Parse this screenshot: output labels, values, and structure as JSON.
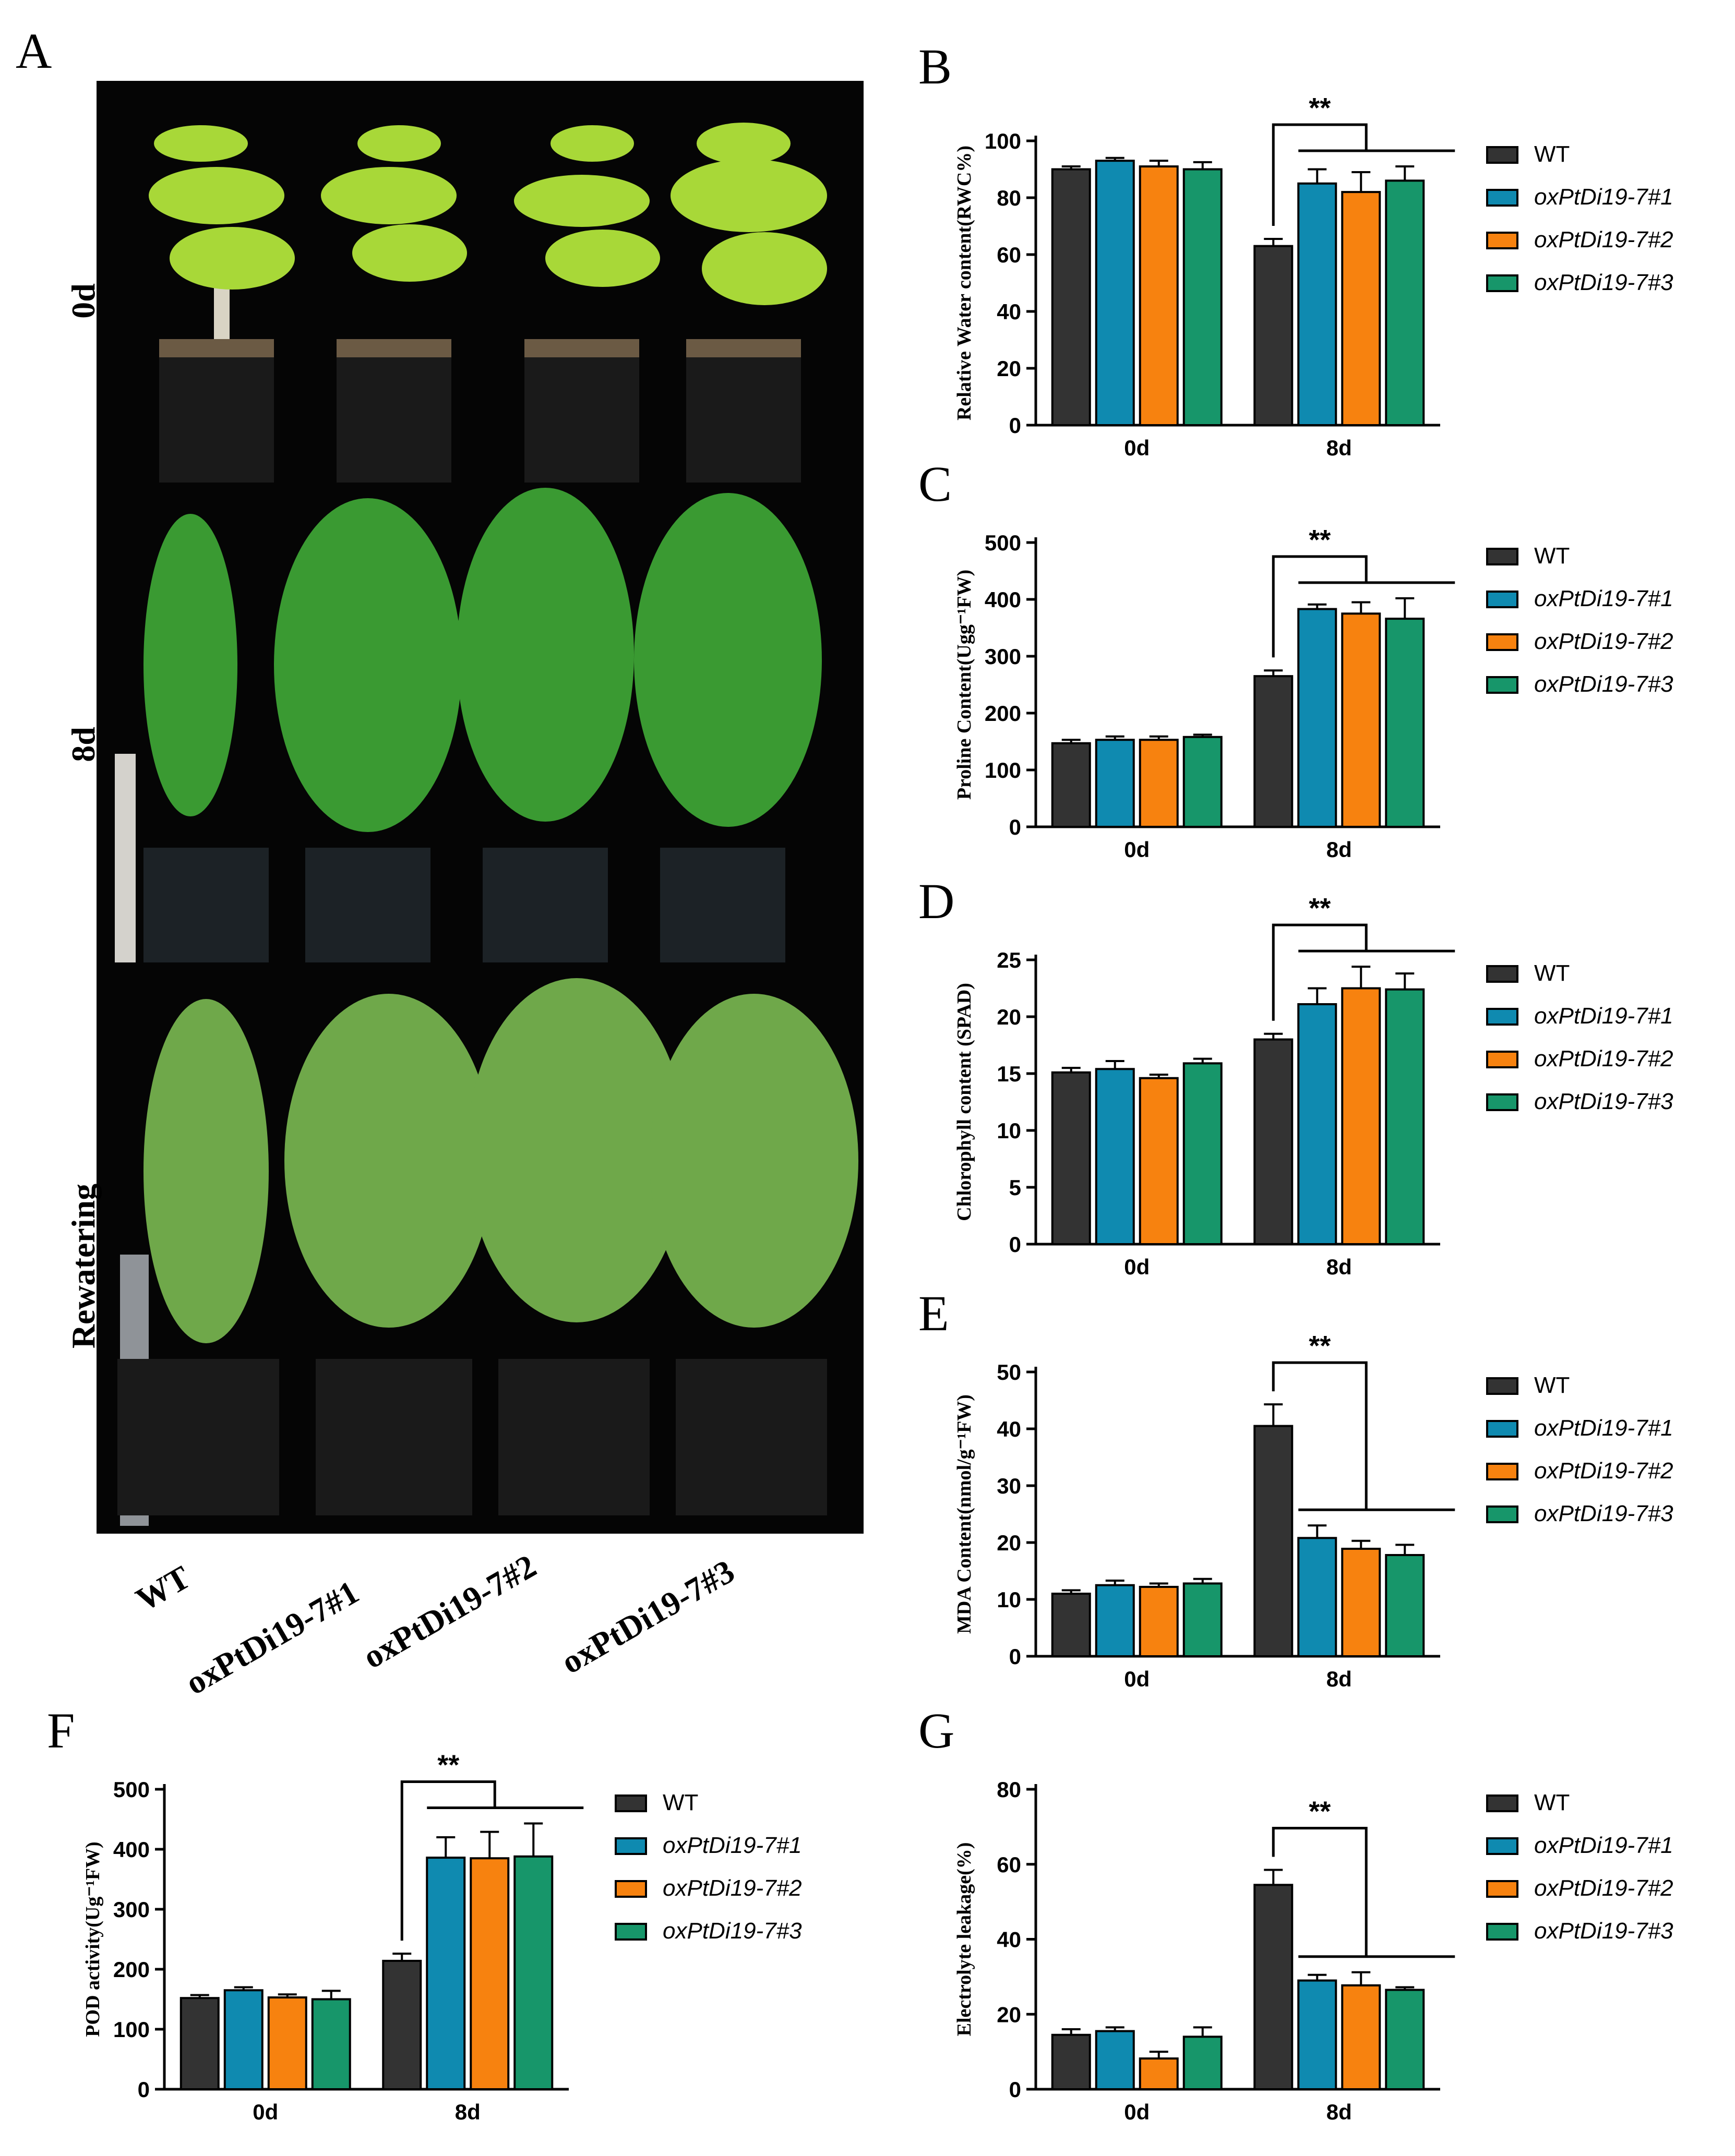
{
  "panels": {
    "A": "A",
    "B": "B",
    "C": "C",
    "D": "D",
    "E": "E",
    "F": "F",
    "G": "G"
  },
  "photo_rows": [
    "0d",
    "8d",
    "Rewatering"
  ],
  "genotypes": [
    "WT",
    "oxPtDi19-7#1",
    "oxPtDi19-7#2",
    "oxPtDi19-7#3"
  ],
  "colors": {
    "WT": "#333333",
    "line1": "#0f8ab0",
    "line2": "#f7820f",
    "line3": "#17966a"
  },
  "chart_data": [
    {
      "id": "B",
      "type": "bar",
      "ylabel": "Relative Water content(RWC%)",
      "categories": [
        "0d",
        "8d"
      ],
      "ylim": [
        0,
        100
      ],
      "yticks": [
        0,
        20,
        40,
        60,
        80,
        100
      ],
      "legend": [
        "WT",
        "oxPtDi19-7#1",
        "oxPtDi19-7#2",
        "oxPtDi19-7#3"
      ],
      "series": [
        {
          "name": "WT",
          "values": [
            90,
            63
          ],
          "errors": [
            1,
            2.5
          ]
        },
        {
          "name": "oxPtDi19-7#1",
          "values": [
            93,
            85
          ],
          "errors": [
            1,
            5
          ]
        },
        {
          "name": "oxPtDi19-7#2",
          "values": [
            91,
            82
          ],
          "errors": [
            2,
            7
          ]
        },
        {
          "name": "oxPtDi19-7#3",
          "values": [
            90,
            86
          ],
          "errors": [
            2.5,
            5
          ]
        }
      ],
      "significance": "**"
    },
    {
      "id": "C",
      "type": "bar",
      "ylabel": "Proline Content(Ugg⁻¹FW)",
      "categories": [
        "0d",
        "8d"
      ],
      "ylim": [
        0,
        500
      ],
      "yticks": [
        0,
        100,
        200,
        300,
        400,
        500
      ],
      "legend": [
        "WT",
        "oxPtDi19-7#1",
        "oxPtDi19-7#2",
        "oxPtDi19-7#3"
      ],
      "series": [
        {
          "name": "WT",
          "values": [
            147,
            265
          ],
          "errors": [
            6,
            10
          ]
        },
        {
          "name": "oxPtDi19-7#1",
          "values": [
            153,
            383
          ],
          "errors": [
            6,
            8
          ]
        },
        {
          "name": "oxPtDi19-7#2",
          "values": [
            153,
            375
          ],
          "errors": [
            6,
            20
          ]
        },
        {
          "name": "oxPtDi19-7#3",
          "values": [
            158,
            366
          ],
          "errors": [
            4,
            36
          ]
        }
      ],
      "significance": "**"
    },
    {
      "id": "D",
      "type": "bar",
      "ylabel": "Chlorophyll content (SPAD)",
      "categories": [
        "0d",
        "8d"
      ],
      "ylim": [
        0,
        25
      ],
      "yticks": [
        0,
        5,
        10,
        15,
        20,
        25
      ],
      "legend": [
        "WT",
        "oxPtDi19-7#1",
        "oxPtDi19-7#2",
        "oxPtDi19-7#3"
      ],
      "series": [
        {
          "name": "WT",
          "values": [
            15.1,
            18
          ],
          "errors": [
            0.4,
            0.5
          ]
        },
        {
          "name": "oxPtDi19-7#1",
          "values": [
            15.4,
            21.1
          ],
          "errors": [
            0.7,
            1.4
          ]
        },
        {
          "name": "oxPtDi19-7#2",
          "values": [
            14.6,
            22.5
          ],
          "errors": [
            0.3,
            1.9
          ]
        },
        {
          "name": "oxPtDi19-7#3",
          "values": [
            15.9,
            22.4
          ],
          "errors": [
            0.4,
            1.4
          ]
        }
      ],
      "significance": "**"
    },
    {
      "id": "E",
      "type": "bar",
      "ylabel": "MDA Content(nmol/g⁻¹FW)",
      "categories": [
        "0d",
        "8d"
      ],
      "ylim": [
        0,
        50
      ],
      "yticks": [
        0,
        10,
        20,
        30,
        40,
        50
      ],
      "legend": [
        "WT",
        "oxPtDi19-7#1",
        "oxPtDi19-7#2",
        "oxPtDi19-7#3"
      ],
      "series": [
        {
          "name": "WT",
          "values": [
            11,
            40.5
          ],
          "errors": [
            0.6,
            3.8
          ]
        },
        {
          "name": "oxPtDi19-7#1",
          "values": [
            12.5,
            20.8
          ],
          "errors": [
            0.8,
            2.2
          ]
        },
        {
          "name": "oxPtDi19-7#2",
          "values": [
            12.2,
            18.9
          ],
          "errors": [
            0.6,
            1.4
          ]
        },
        {
          "name": "oxPtDi19-7#3",
          "values": [
            12.8,
            17.8
          ],
          "errors": [
            0.8,
            1.8
          ]
        }
      ],
      "significance": "**"
    },
    {
      "id": "F",
      "type": "bar",
      "ylabel": "POD activity(Ug⁻¹FW)",
      "categories": [
        "0d",
        "8d"
      ],
      "ylim": [
        0,
        500
      ],
      "yticks": [
        0,
        100,
        200,
        300,
        400,
        500
      ],
      "legend": [
        "WT",
        "oxPtDi19-7#1",
        "oxPtDi19-7#2",
        "oxPtDi19-7#3"
      ],
      "series": [
        {
          "name": "WT",
          "values": [
            152,
            214
          ],
          "errors": [
            5,
            12
          ]
        },
        {
          "name": "oxPtDi19-7#1",
          "values": [
            165,
            386
          ],
          "errors": [
            5,
            34
          ]
        },
        {
          "name": "oxPtDi19-7#2",
          "values": [
            153,
            385
          ],
          "errors": [
            5,
            44
          ]
        },
        {
          "name": "oxPtDi19-7#3",
          "values": [
            150,
            388
          ],
          "errors": [
            14,
            55
          ]
        }
      ],
      "significance": "**"
    },
    {
      "id": "G",
      "type": "bar",
      "ylabel": "Electrolyte leakage(%)",
      "categories": [
        "0d",
        "8d"
      ],
      "ylim": [
        0,
        80
      ],
      "yticks": [
        0,
        20,
        40,
        60,
        80
      ],
      "legend": [
        "WT",
        "oxPtDi19-7#1",
        "oxPtDi19-7#2",
        "oxPtDi19-7#3"
      ],
      "series": [
        {
          "name": "WT",
          "values": [
            14.5,
            54.5
          ],
          "errors": [
            1.5,
            4
          ]
        },
        {
          "name": "oxPtDi19-7#1",
          "values": [
            15.5,
            29
          ],
          "errors": [
            1,
            1.5
          ]
        },
        {
          "name": "oxPtDi19-7#2",
          "values": [
            8.2,
            27.7
          ],
          "errors": [
            1.8,
            3.5
          ]
        },
        {
          "name": "oxPtDi19-7#3",
          "values": [
            14,
            26.5
          ],
          "errors": [
            2.5,
            0.7
          ]
        }
      ],
      "significance": "**"
    }
  ]
}
